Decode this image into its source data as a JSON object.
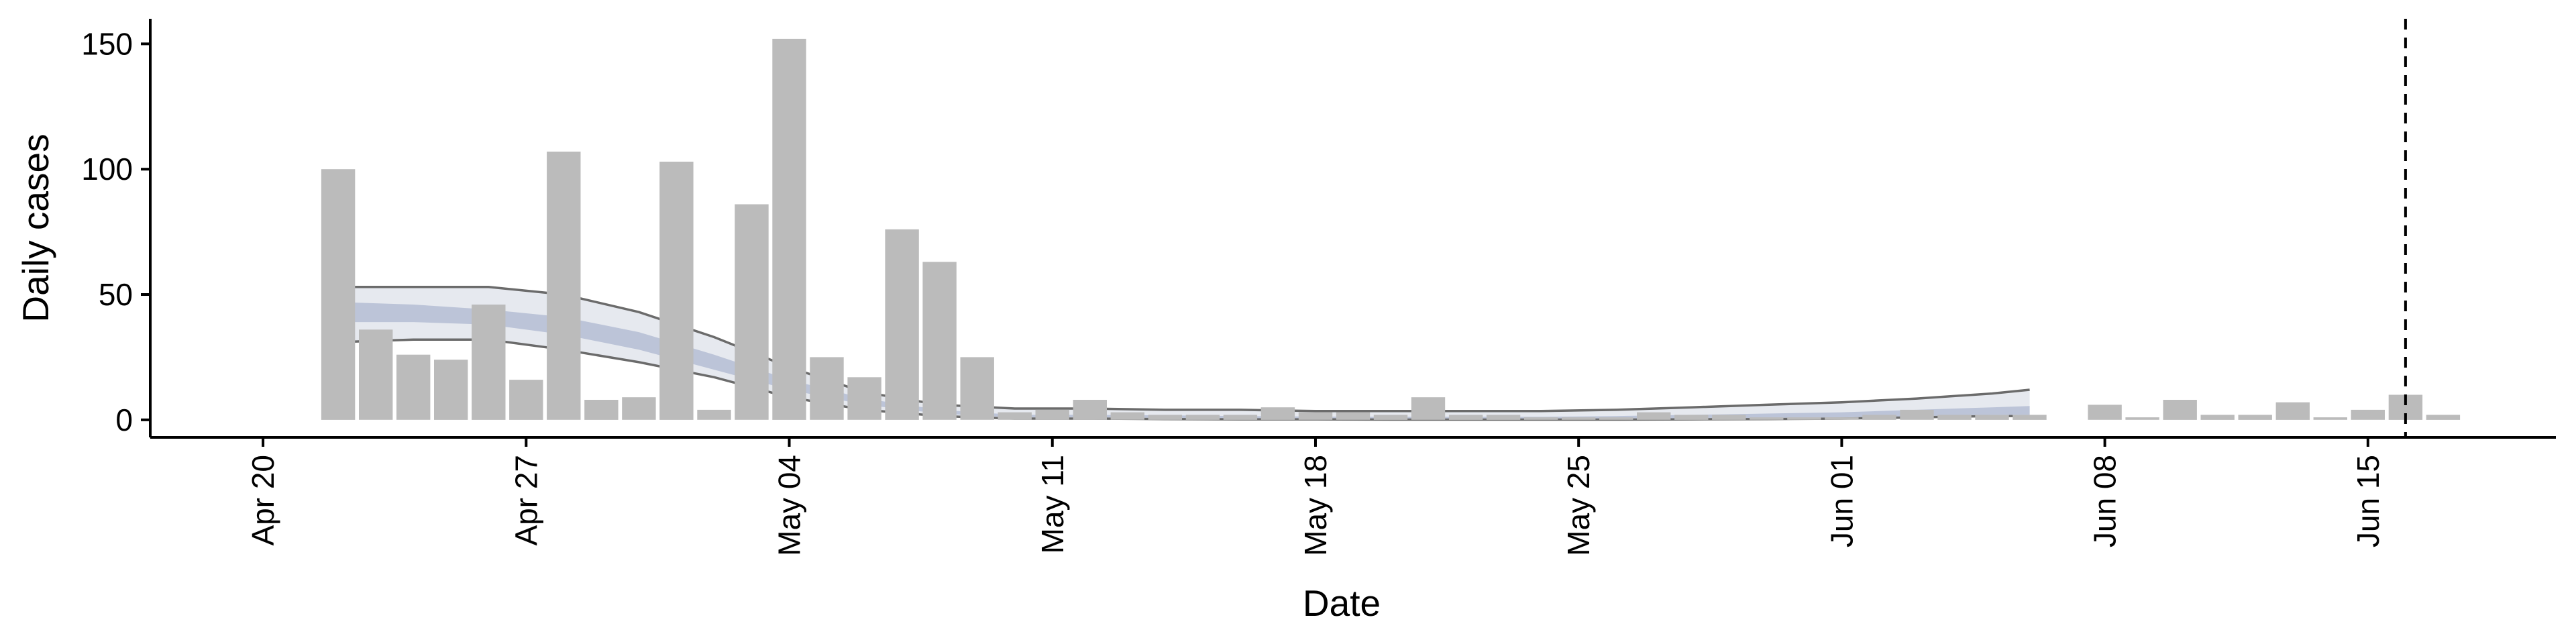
{
  "chart_data": {
    "type": "bar",
    "xlabel": "Date",
    "ylabel": "Daily cases",
    "x_range": [
      "2020-04-17",
      "2020-06-20"
    ],
    "ylim": [
      -7,
      160
    ],
    "y_ticks": [
      0,
      50,
      100,
      150
    ],
    "x_ticks": [
      {
        "date": "2020-04-20",
        "label": "Apr 20"
      },
      {
        "date": "2020-04-27",
        "label": "Apr 27"
      },
      {
        "date": "2020-05-04",
        "label": "May 04"
      },
      {
        "date": "2020-05-11",
        "label": "May 11"
      },
      {
        "date": "2020-05-18",
        "label": "May 18"
      },
      {
        "date": "2020-05-25",
        "label": "May 25"
      },
      {
        "date": "2020-06-01",
        "label": "Jun 01"
      },
      {
        "date": "2020-06-08",
        "label": "Jun 08"
      },
      {
        "date": "2020-06-15",
        "label": "Jun 15"
      }
    ],
    "grid": false,
    "bars": {
      "color": "#bbbbbb",
      "dates": [
        "2020-04-22",
        "2020-04-23",
        "2020-04-24",
        "2020-04-25",
        "2020-04-26",
        "2020-04-27",
        "2020-04-28",
        "2020-04-29",
        "2020-04-30",
        "2020-05-01",
        "2020-05-02",
        "2020-05-03",
        "2020-05-04",
        "2020-05-05",
        "2020-05-06",
        "2020-05-07",
        "2020-05-08",
        "2020-05-09",
        "2020-05-10",
        "2020-05-11",
        "2020-05-12",
        "2020-05-13",
        "2020-05-14",
        "2020-05-15",
        "2020-05-16",
        "2020-05-17",
        "2020-05-18",
        "2020-05-19",
        "2020-05-20",
        "2020-05-21",
        "2020-05-22",
        "2020-05-23",
        "2020-05-24",
        "2020-05-25",
        "2020-05-26",
        "2020-05-27",
        "2020-05-28",
        "2020-05-29",
        "2020-05-30",
        "2020-05-31",
        "2020-06-01",
        "2020-06-02",
        "2020-06-03",
        "2020-06-04",
        "2020-06-05",
        "2020-06-06",
        "2020-06-07",
        "2020-06-08",
        "2020-06-09",
        "2020-06-10",
        "2020-06-11",
        "2020-06-12",
        "2020-06-13",
        "2020-06-14",
        "2020-06-15",
        "2020-06-16",
        "2020-06-17"
      ],
      "values": [
        100,
        36,
        26,
        24,
        46,
        16,
        107,
        8,
        9,
        103,
        4,
        86,
        152,
        25,
        17,
        76,
        63,
        25,
        3,
        4,
        8,
        3,
        2,
        2,
        2,
        5,
        3,
        3,
        2,
        9,
        2,
        2,
        1,
        1,
        1,
        3,
        2,
        2,
        1,
        1,
        1,
        2,
        4,
        2,
        2,
        2,
        0,
        6,
        1,
        8,
        2,
        2,
        7,
        1,
        4,
        10,
        2
      ]
    },
    "estimate_band": {
      "dates": [
        "2020-04-22",
        "2020-04-24",
        "2020-04-26",
        "2020-04-28",
        "2020-04-30",
        "2020-05-02",
        "2020-05-04",
        "2020-05-06",
        "2020-05-08",
        "2020-05-10",
        "2020-05-12",
        "2020-05-14",
        "2020-05-16",
        "2020-05-18",
        "2020-05-20",
        "2020-05-22",
        "2020-05-24",
        "2020-05-26",
        "2020-05-28",
        "2020-05-30",
        "2020-06-01",
        "2020-06-03",
        "2020-06-05",
        "2020-06-06"
      ],
      "outer_lower": [
        31,
        32,
        32,
        28,
        23,
        17,
        9,
        4,
        1.5,
        0.5,
        0.5,
        0.3,
        0.2,
        0.2,
        0.1,
        0.1,
        0.1,
        0.1,
        0.2,
        0.3,
        0.5,
        1,
        1.5,
        1.5
      ],
      "outer_upper": [
        53,
        53,
        53,
        50,
        43,
        33,
        21,
        11,
        6,
        4.5,
        4.5,
        4,
        4,
        3.5,
        3.5,
        3.5,
        3.5,
        4,
        5,
        6,
        7,
        8.5,
        10.5,
        12
      ],
      "inner_lower": [
        39,
        39,
        38,
        34,
        28,
        20,
        12,
        6,
        2.5,
        1,
        1,
        0.8,
        0.6,
        0.5,
        0.5,
        0.4,
        0.4,
        0.5,
        0.6,
        0.8,
        1,
        1.5,
        2,
        2
      ],
      "inner_upper": [
        47,
        46,
        44,
        41,
        35,
        26,
        16,
        8.5,
        4,
        2,
        2,
        1.8,
        1.5,
        1.3,
        1.2,
        1.2,
        1.2,
        1.5,
        2,
        2.5,
        3,
        4,
        5,
        5.5
      ],
      "outer_color": "#dde1ea",
      "inner_color": "#b4bdd3",
      "line_color": "#6b6b6b"
    },
    "cutoff_date": "2020-06-16"
  }
}
